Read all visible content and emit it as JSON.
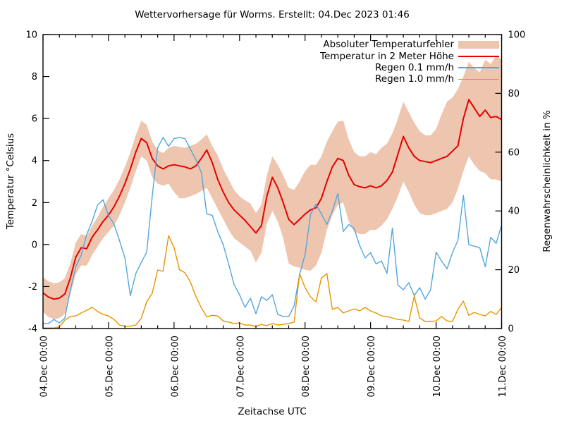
{
  "title": "Wettervorhersage für Worms. Erstellt: 04.Dec 2023 01:46",
  "axes": {
    "x": {
      "label": "Zeitachse UTC",
      "range_hours": [
        0,
        168
      ],
      "major_tick_every_hours": 24,
      "minor_tick_every_hours": 6,
      "tick_labels": [
        "04.Dec 00:00",
        "05.Dec 00:00",
        "06.Dec 00:00",
        "07.Dec 00:00",
        "08.Dec 00:00",
        "09.Dec 00:00",
        "10.Dec 00:00",
        "11.Dec 00:00"
      ]
    },
    "left": {
      "label": "Temperatur °Celsius",
      "range": [
        -4,
        10
      ],
      "ticks": [
        -4,
        -2,
        0,
        2,
        4,
        6,
        8,
        10
      ]
    },
    "right": {
      "label": "Regenwahrscheinlichkeit in %",
      "range": [
        0,
        100
      ],
      "ticks": [
        0,
        20,
        40,
        60,
        80,
        100
      ]
    }
  },
  "legend": {
    "position": "top-right-inside"
  },
  "chart_data": {
    "type": "line",
    "title": "Wettervorhersage für Worms. Erstellt: 04.Dec 2023 01:46",
    "xlabel": "Zeitachse UTC",
    "ylabel_left": "Temperatur °Celsius",
    "ylabel_right": "Regenwahrscheinlichkeit in %",
    "ylim_left": [
      -4,
      10
    ],
    "ylim_right": [
      0,
      100
    ],
    "grid": false,
    "x_start_label": "04.Dec 00:00",
    "x_end_label": "11.Dec 00:00",
    "x_hours_step": 2,
    "series": [
      {
        "name": "Absoluter Temperaturfehler",
        "style": "band",
        "axis": "left",
        "color": "#eec5af",
        "upper": [
          -1.55,
          -1.75,
          -1.85,
          -1.8,
          -1.6,
          -0.9,
          0.1,
          0.5,
          0.4,
          0.9,
          1.3,
          1.8,
          2.2,
          2.6,
          3.1,
          3.7,
          4.4,
          5.2,
          5.9,
          5.7,
          4.9,
          4.5,
          4.35,
          4.6,
          4.7,
          4.65,
          4.6,
          4.7,
          4.8,
          5.0,
          5.25,
          4.7,
          4.25,
          3.6,
          3.1,
          2.6,
          2.3,
          2.1,
          1.95,
          1.5,
          1.9,
          3.3,
          4.2,
          3.8,
          3.3,
          2.7,
          2.6,
          3.0,
          3.5,
          3.8,
          3.8,
          4.2,
          4.9,
          5.4,
          5.85,
          5.9,
          5.0,
          4.4,
          4.2,
          4.2,
          4.4,
          4.3,
          4.6,
          4.8,
          5.3,
          6.0,
          6.8,
          6.3,
          5.8,
          5.4,
          5.2,
          5.2,
          5.5,
          6.2,
          6.8,
          7.0,
          7.4,
          8.0,
          8.7,
          8.4,
          8.2,
          8.8,
          8.6,
          9.0,
          8.8
        ],
        "lower": [
          -3.2,
          -3.45,
          -3.55,
          -3.5,
          -3.3,
          -2.4,
          -1.4,
          -1.0,
          -1.0,
          -0.5,
          -0.1,
          0.3,
          0.6,
          0.9,
          1.4,
          2.0,
          2.7,
          3.5,
          4.2,
          4.0,
          3.2,
          2.9,
          2.8,
          2.9,
          2.5,
          2.2,
          2.2,
          2.3,
          2.4,
          2.55,
          2.7,
          2.2,
          1.7,
          1.2,
          0.7,
          0.3,
          0.1,
          -0.1,
          -0.3,
          -0.85,
          -0.4,
          1.0,
          1.6,
          1.1,
          0.3,
          -0.9,
          -1.05,
          -1.1,
          -1.2,
          -1.25,
          -1.0,
          -0.4,
          0.7,
          1.4,
          1.9,
          2.0,
          1.1,
          0.6,
          0.5,
          0.5,
          0.7,
          0.7,
          0.9,
          1.2,
          1.7,
          2.3,
          3.0,
          2.5,
          1.9,
          1.5,
          1.4,
          1.4,
          1.5,
          1.6,
          1.7,
          2.0,
          2.65,
          3.5,
          4.2,
          3.8,
          3.5,
          3.4,
          3.1,
          3.1,
          3.0
        ]
      },
      {
        "name": "Temperatur in 2 Meter Höhe",
        "style": "line",
        "axis": "left",
        "color": "#e60000",
        "width": 2,
        "values": [
          -2.3,
          -2.5,
          -2.6,
          -2.55,
          -2.35,
          -1.6,
          -0.6,
          -0.15,
          -0.2,
          0.35,
          0.7,
          1.1,
          1.4,
          1.8,
          2.3,
          2.9,
          3.6,
          4.4,
          5.05,
          4.85,
          4.1,
          3.75,
          3.6,
          3.75,
          3.8,
          3.75,
          3.7,
          3.6,
          3.75,
          4.1,
          4.5,
          3.9,
          3.1,
          2.5,
          2.0,
          1.65,
          1.4,
          1.15,
          0.85,
          0.55,
          0.9,
          2.3,
          3.2,
          2.7,
          2.0,
          1.2,
          0.95,
          1.2,
          1.45,
          1.65,
          1.75,
          2.2,
          3.0,
          3.7,
          4.1,
          4.0,
          3.3,
          2.85,
          2.75,
          2.7,
          2.8,
          2.7,
          2.8,
          3.05,
          3.45,
          4.3,
          5.15,
          4.6,
          4.2,
          4.0,
          3.95,
          3.9,
          4.0,
          4.1,
          4.2,
          4.45,
          4.7,
          6.0,
          6.9,
          6.5,
          6.1,
          6.4,
          6.05,
          6.1,
          5.95
        ]
      },
      {
        "name": "Regen 0.1 mm/h",
        "style": "line",
        "axis": "right",
        "color": "#52a6dd",
        "width": 1.4,
        "values": [
          1.7,
          1.7,
          3.1,
          1.9,
          3.6,
          13,
          21,
          25,
          32,
          36.5,
          42,
          43.8,
          38.5,
          35.5,
          30,
          24,
          11.2,
          18.7,
          22.5,
          26,
          45,
          61.5,
          65,
          62,
          64.6,
          65,
          64.6,
          61,
          57.5,
          53,
          39,
          38.5,
          33,
          28.5,
          22,
          15,
          11.5,
          7.2,
          10.3,
          5,
          10.8,
          9.6,
          11.5,
          4.8,
          4.1,
          4.1,
          7.7,
          18.4,
          25.1,
          38.8,
          42.3,
          39,
          35.4,
          40,
          45.9,
          33,
          35.4,
          34,
          28.2,
          24,
          25.8,
          22,
          23,
          18.7,
          34.2,
          14.8,
          13.2,
          15.6,
          11.2,
          13.9,
          10,
          13.2,
          26,
          23,
          20.3,
          25.8,
          30,
          45.3,
          28.5,
          28,
          27.5,
          21,
          31,
          29,
          35.2
        ]
      },
      {
        "name": "Regen 1.0 mm/h",
        "style": "line",
        "axis": "right",
        "color": "#e69500",
        "width": 1.4,
        "values": [
          0.2,
          0.2,
          0.2,
          0.5,
          2.9,
          4.1,
          4.3,
          5.3,
          6.2,
          7.2,
          5.8,
          4.8,
          4.3,
          3.1,
          1.2,
          0.8,
          0.8,
          1.2,
          3.5,
          9.1,
          12,
          19.9,
          19.5,
          31.6,
          27.5,
          20,
          19,
          15.8,
          11,
          7,
          4,
          4.5,
          4.3,
          2.6,
          2.2,
          1.7,
          1.9,
          1.2,
          1.2,
          0.7,
          1.4,
          1.0,
          1.7,
          1.2,
          1.4,
          1.7,
          2.2,
          18.7,
          13.9,
          10.8,
          9.1,
          17.2,
          18.7,
          6.5,
          7.2,
          5.3,
          6.0,
          6.7,
          6.0,
          7.2,
          6.0,
          5.3,
          4.3,
          4.1,
          3.6,
          3.1,
          2.9,
          2.4,
          11.0,
          3.6,
          2.4,
          2.4,
          2.6,
          4.1,
          2.6,
          2.4,
          6.5,
          9.3,
          4.5,
          5.5,
          4.8,
          4.3,
          5.8,
          4.8,
          7.2
        ]
      }
    ]
  }
}
